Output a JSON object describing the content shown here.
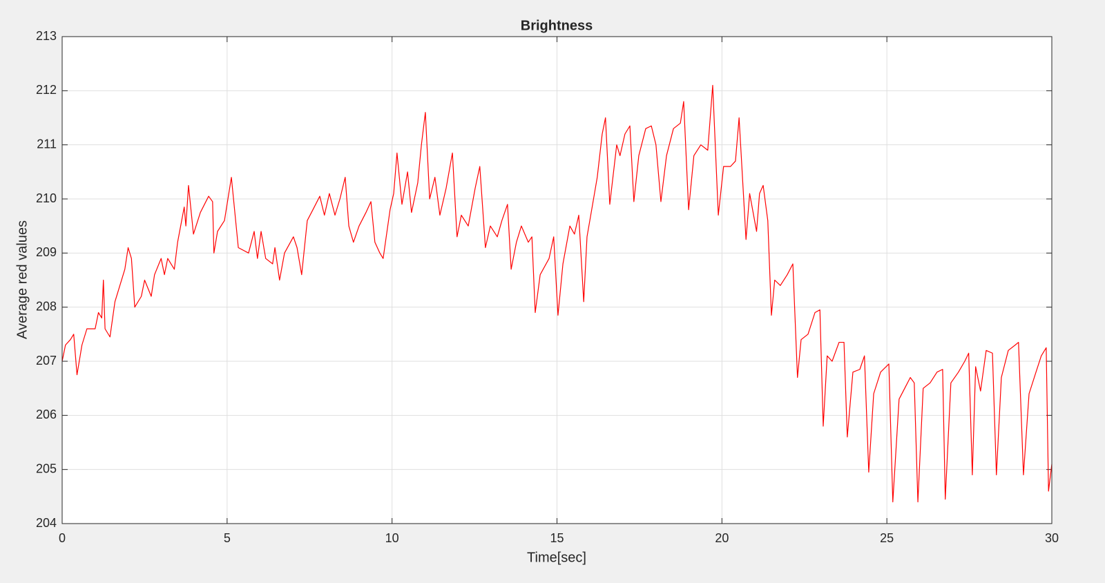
{
  "chart_data": {
    "type": "line",
    "title": "Brightness",
    "x_label": "Time[sec]",
    "y_label": "Average red values",
    "x": [
      0,
      0.1,
      0.25,
      0.35,
      0.45,
      0.6,
      0.75,
      1.0,
      1.1,
      1.2,
      1.25,
      1.3,
      1.45,
      1.6,
      1.75,
      1.9,
      2.0,
      2.1,
      2.2,
      2.4,
      2.5,
      2.7,
      2.8,
      3.0,
      3.1,
      3.2,
      3.4,
      3.5,
      3.7,
      3.75,
      3.83,
      3.98,
      4.19,
      4.44,
      4.56,
      4.6,
      4.71,
      4.92,
      5.13,
      5.34,
      5.65,
      5.82,
      5.92,
      6.03,
      6.17,
      6.38,
      6.45,
      6.59,
      6.74,
      7.01,
      7.12,
      7.26,
      7.43,
      7.6,
      7.81,
      7.95,
      8.1,
      8.27,
      8.42,
      8.58,
      8.69,
      8.83,
      9.0,
      9.21,
      9.36,
      9.48,
      9.63,
      9.73,
      9.94,
      10.05,
      10.15,
      10.3,
      10.47,
      10.59,
      10.78,
      10.89,
      11.01,
      11.14,
      11.3,
      11.45,
      11.64,
      11.83,
      11.97,
      12.1,
      12.31,
      12.52,
      12.66,
      12.83,
      12.98,
      13.19,
      13.33,
      13.5,
      13.61,
      13.77,
      13.92,
      14.13,
      14.24,
      14.34,
      14.49,
      14.76,
      14.9,
      15.03,
      15.18,
      15.39,
      15.53,
      15.66,
      15.81,
      15.91,
      16.08,
      16.22,
      16.37,
      16.47,
      16.6,
      16.81,
      16.91,
      17.06,
      17.21,
      17.33,
      17.48,
      17.69,
      17.86,
      18.0,
      18.15,
      18.32,
      18.53,
      18.74,
      18.84,
      18.99,
      19.15,
      19.36,
      19.57,
      19.72,
      19.89,
      20.05,
      20.26,
      20.41,
      20.52,
      20.73,
      20.84,
      21.05,
      21.14,
      21.25,
      21.39,
      21.5,
      21.6,
      21.77,
      21.98,
      22.15,
      22.29,
      22.4,
      22.61,
      22.82,
      22.97,
      23.07,
      23.19,
      23.34,
      23.55,
      23.7,
      23.8,
      23.97,
      24.18,
      24.32,
      24.45,
      24.6,
      24.81,
      25.06,
      25.18,
      25.37,
      25.54,
      25.71,
      25.83,
      25.94,
      26.1,
      26.31,
      26.52,
      26.69,
      26.77,
      26.94,
      27.17,
      27.36,
      27.48,
      27.59,
      27.69,
      27.84,
      28.01,
      28.2,
      28.32,
      28.47,
      28.68,
      28.89,
      28.99,
      29.14,
      29.31,
      29.52,
      29.68,
      29.83,
      29.9,
      30.0
    ],
    "values": [
      207.0,
      207.3,
      207.4,
      207.5,
      206.75,
      207.3,
      207.6,
      207.6,
      207.9,
      207.8,
      208.5,
      207.6,
      207.45,
      208.1,
      208.4,
      208.7,
      209.1,
      208.9,
      208.0,
      208.2,
      208.5,
      208.2,
      208.6,
      208.9,
      208.6,
      208.9,
      208.7,
      209.2,
      209.85,
      209.5,
      210.25,
      209.35,
      209.75,
      210.05,
      209.95,
      209.0,
      209.4,
      209.6,
      210.4,
      209.1,
      209.0,
      209.4,
      208.9,
      209.4,
      208.9,
      208.8,
      209.1,
      208.5,
      209.0,
      209.3,
      209.1,
      208.6,
      209.6,
      209.8,
      210.05,
      209.7,
      210.1,
      209.7,
      210.0,
      210.4,
      209.5,
      209.2,
      209.5,
      209.75,
      209.95,
      209.2,
      209.0,
      208.9,
      209.8,
      210.1,
      210.85,
      209.9,
      210.5,
      209.75,
      210.3,
      211.0,
      211.6,
      210.0,
      210.4,
      209.7,
      210.2,
      210.85,
      209.3,
      209.7,
      209.5,
      210.2,
      210.6,
      209.1,
      209.5,
      209.3,
      209.6,
      209.9,
      208.7,
      209.2,
      209.5,
      209.2,
      209.3,
      207.9,
      208.6,
      208.9,
      209.3,
      207.85,
      208.8,
      209.5,
      209.35,
      209.7,
      208.1,
      209.3,
      209.9,
      210.4,
      211.2,
      211.5,
      209.9,
      211.0,
      210.8,
      211.2,
      211.35,
      209.95,
      210.8,
      211.3,
      211.35,
      211.0,
      209.95,
      210.8,
      211.3,
      211.4,
      211.8,
      209.8,
      210.8,
      211.0,
      210.9,
      212.1,
      209.7,
      210.6,
      210.6,
      210.7,
      211.5,
      209.25,
      210.1,
      209.4,
      210.1,
      210.25,
      209.6,
      207.85,
      208.5,
      208.4,
      208.6,
      208.8,
      206.7,
      207.4,
      207.5,
      207.9,
      207.95,
      205.8,
      207.1,
      207.0,
      207.35,
      207.35,
      205.6,
      206.8,
      206.85,
      207.1,
      204.95,
      206.4,
      206.8,
      206.95,
      204.4,
      206.3,
      206.5,
      206.7,
      206.6,
      204.4,
      206.5,
      206.6,
      206.8,
      206.85,
      204.45,
      206.6,
      206.8,
      207.0,
      207.15,
      204.9,
      206.9,
      206.45,
      207.2,
      207.15,
      204.9,
      206.7,
      207.2,
      207.3,
      207.35,
      204.9,
      206.4,
      206.8,
      207.1,
      207.25,
      204.6,
      205.1
    ],
    "color": "#ff0000",
    "xlim": [
      0,
      30
    ],
    "xticks": [
      0,
      5,
      10,
      15,
      20,
      25,
      30
    ],
    "ylim": [
      204,
      213
    ],
    "yticks": [
      204,
      205,
      206,
      207,
      208,
      209,
      210,
      211,
      212,
      213
    ],
    "grid": true
  }
}
